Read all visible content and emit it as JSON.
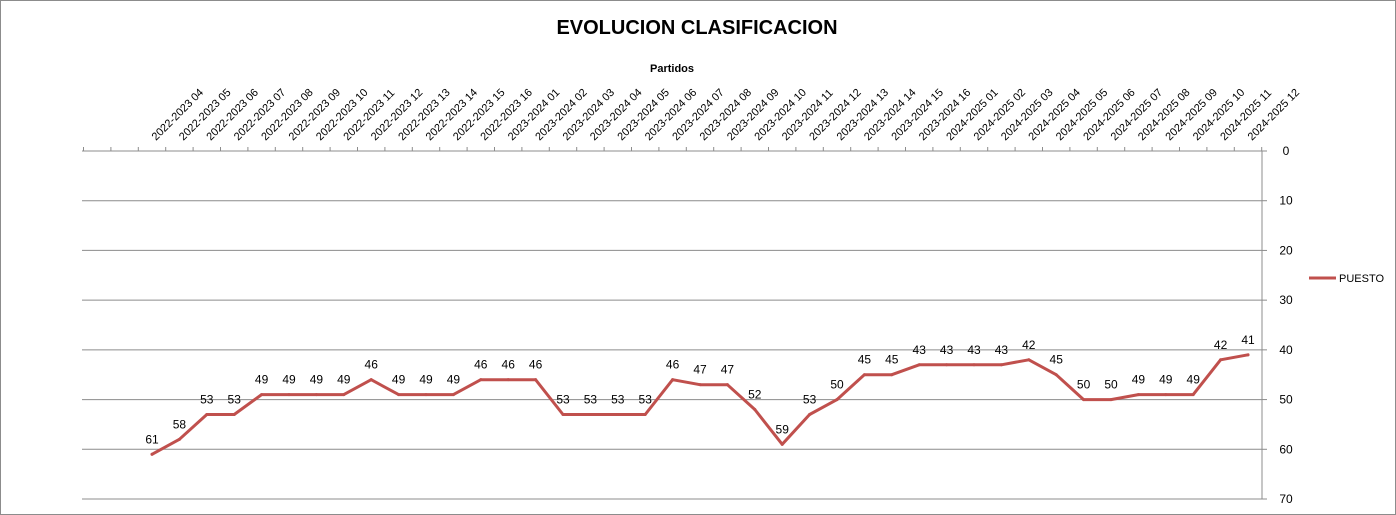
{
  "chart_data": {
    "type": "line",
    "title": "EVOLUCION CLASIFICACION",
    "xlabel": "Partidos",
    "ylabel": "",
    "ylim": [
      0,
      70
    ],
    "y_inverted": true,
    "y_ticks": [
      0,
      10,
      20,
      30,
      40,
      50,
      60,
      70
    ],
    "y_axis_position": "right",
    "x_axis_position": "top",
    "grid": "horizontal",
    "legend_position": "right",
    "line_color": "#c0504d",
    "categories": [
      "2022-2023 04",
      "2022-2023 05",
      "2022-2023 06",
      "2022-2023 07",
      "2022-2023 08",
      "2022-2023 09",
      "2022-2023 10",
      "2022-2023 11",
      "2022-2023 12",
      "2022-2023 13",
      "2022-2023 14",
      "2022-2023 15",
      "2022-2023 16",
      "2023-2024 01",
      "2023-2024 02",
      "2023-2024 03",
      "2023-2024 04",
      "2023-2024 05",
      "2023-2024 06",
      "2023-2024 07",
      "2023-2024 08",
      "2023-2024 09",
      "2023-2024 10",
      "2023-2024 11",
      "2023-2024 12",
      "2023-2024 13",
      "2023-2024 14",
      "2023-2024 15",
      "2023-2024 16",
      "2024-2025 01",
      "2024-2025 02",
      "2024-2025 03",
      "2024-2025 04",
      "2024-2025 05",
      "2024-2025 06",
      "2024-2025 07",
      "2024-2025 08",
      "2024-2025 09",
      "2024-2025 10",
      "2024-2025 11",
      "2024-2025 12"
    ],
    "series": [
      {
        "name": "PUESTO",
        "values": [
          61,
          58,
          53,
          53,
          49,
          49,
          49,
          49,
          46,
          49,
          49,
          49,
          46,
          46,
          46,
          53,
          53,
          53,
          53,
          46,
          47,
          47,
          52,
          59,
          53,
          50,
          45,
          45,
          43,
          43,
          43,
          43,
          42,
          45,
          50,
          50,
          49,
          49,
          49,
          42,
          41
        ]
      }
    ]
  }
}
